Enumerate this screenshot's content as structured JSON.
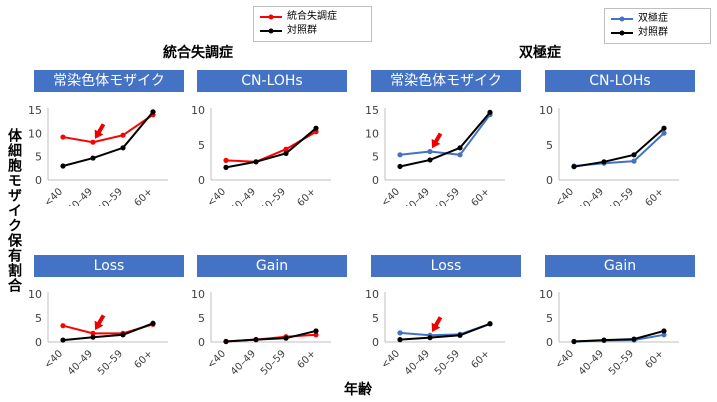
{
  "colors": {
    "schizophrenia": "#ff0000",
    "bipolar": "#4472c4",
    "control": "#000000",
    "panel_header": "#4472c4",
    "arrow": "#ee0000",
    "axis": "#bfbfbf"
  },
  "legends": [
    {
      "group": "schizophrenia",
      "entries": [
        {
          "label": "統合失調症",
          "color": "#ff0000"
        },
        {
          "label": "対照群",
          "color": "#000000"
        }
      ]
    },
    {
      "group": "bipolar",
      "entries": [
        {
          "label": "双極症",
          "color": "#4472c4"
        },
        {
          "label": "対照群",
          "color": "#000000"
        }
      ]
    }
  ],
  "group_titles": {
    "schizophrenia": "統合失調症",
    "bipolar": "双極症"
  },
  "ylabel": "体細胞モザイク保有割合",
  "xlabel": "年齢",
  "chart_data": [
    {
      "type": "line",
      "group": "schizophrenia",
      "title": "常染色体モザイク",
      "categories": [
        "<40",
        "40–49",
        "50–59",
        "60+"
      ],
      "ylim": [
        0,
        15
      ],
      "yticks": [
        0,
        5,
        10,
        15
      ],
      "arrow_at": 1,
      "series": [
        {
          "name": "統合失調症",
          "values": [
            9.2,
            8.1,
            9.6,
            14.0
          ],
          "color": "#ff0000"
        },
        {
          "name": "対照群",
          "values": [
            3.0,
            4.7,
            6.9,
            14.6
          ],
          "color": "#000000"
        }
      ]
    },
    {
      "type": "line",
      "group": "schizophrenia",
      "title": "CN-LOHs",
      "categories": [
        "<40",
        "40–49",
        "50–59",
        "60+"
      ],
      "ylim": [
        0,
        10
      ],
      "yticks": [
        0,
        5,
        10
      ],
      "arrow_at": null,
      "series": [
        {
          "name": "統合失調症",
          "values": [
            2.8,
            2.6,
            4.4,
            6.9
          ],
          "color": "#ff0000"
        },
        {
          "name": "対照群",
          "values": [
            1.8,
            2.6,
            3.8,
            7.4
          ],
          "color": "#000000"
        }
      ]
    },
    {
      "type": "line",
      "group": "bipolar",
      "title": "常染色体モザイク",
      "categories": [
        "<40",
        "40–49",
        "50–59",
        "60+"
      ],
      "ylim": [
        0,
        15
      ],
      "yticks": [
        0,
        5,
        10,
        15
      ],
      "arrow_at": 1,
      "series": [
        {
          "name": "双極症",
          "values": [
            5.4,
            6.1,
            5.4,
            14.0
          ],
          "color": "#4472c4"
        },
        {
          "name": "対照群",
          "values": [
            2.9,
            4.3,
            6.9,
            14.5
          ],
          "color": "#000000"
        }
      ]
    },
    {
      "type": "line",
      "group": "bipolar",
      "title": "CN-LOHs",
      "categories": [
        "<40",
        "40–49",
        "50–59",
        "60+"
      ],
      "ylim": [
        0,
        10
      ],
      "yticks": [
        0,
        5,
        10
      ],
      "arrow_at": null,
      "series": [
        {
          "name": "双極症",
          "values": [
            2.0,
            2.4,
            2.7,
            6.7
          ],
          "color": "#4472c4"
        },
        {
          "name": "対照群",
          "values": [
            1.9,
            2.6,
            3.6,
            7.4
          ],
          "color": "#000000"
        }
      ]
    },
    {
      "type": "line",
      "group": "schizophrenia",
      "title": "Loss",
      "categories": [
        "<40",
        "40–49",
        "50–59",
        "60+"
      ],
      "ylim": [
        0,
        10
      ],
      "yticks": [
        0,
        5,
        10
      ],
      "arrow_at": 1,
      "series": [
        {
          "name": "統合失調症",
          "values": [
            3.4,
            1.8,
            1.8,
            3.7
          ],
          "color": "#ff0000"
        },
        {
          "name": "対照群",
          "values": [
            0.4,
            1.0,
            1.5,
            3.9
          ],
          "color": "#000000"
        }
      ]
    },
    {
      "type": "line",
      "group": "schizophrenia",
      "title": "Gain",
      "categories": [
        "<40",
        "40–49",
        "50–59",
        "60+"
      ],
      "ylim": [
        0,
        10
      ],
      "yticks": [
        0,
        5,
        10
      ],
      "arrow_at": null,
      "series": [
        {
          "name": "統合失調症",
          "values": [
            0.1,
            0.5,
            1.1,
            1.5
          ],
          "color": "#ff0000"
        },
        {
          "name": "対照群",
          "values": [
            0.1,
            0.5,
            0.8,
            2.3
          ],
          "color": "#000000"
        }
      ]
    },
    {
      "type": "line",
      "group": "bipolar",
      "title": "Loss",
      "categories": [
        "<40",
        "40–49",
        "50–59",
        "60+"
      ],
      "ylim": [
        0,
        10
      ],
      "yticks": [
        0,
        5,
        10
      ],
      "arrow_at": 1,
      "series": [
        {
          "name": "双極症",
          "values": [
            1.9,
            1.4,
            1.6,
            3.8
          ],
          "color": "#4472c4"
        },
        {
          "name": "対照群",
          "values": [
            0.5,
            0.9,
            1.4,
            3.8
          ],
          "color": "#000000"
        }
      ]
    },
    {
      "type": "line",
      "group": "bipolar",
      "title": "Gain",
      "categories": [
        "<40",
        "40–49",
        "50–59",
        "60+"
      ],
      "ylim": [
        0,
        10
      ],
      "yticks": [
        0,
        5,
        10
      ],
      "arrow_at": null,
      "series": [
        {
          "name": "双極症",
          "values": [
            0.1,
            0.3,
            0.4,
            1.5
          ],
          "color": "#4472c4"
        },
        {
          "name": "対照群",
          "values": [
            0.1,
            0.4,
            0.6,
            2.3
          ],
          "color": "#000000"
        }
      ]
    }
  ]
}
